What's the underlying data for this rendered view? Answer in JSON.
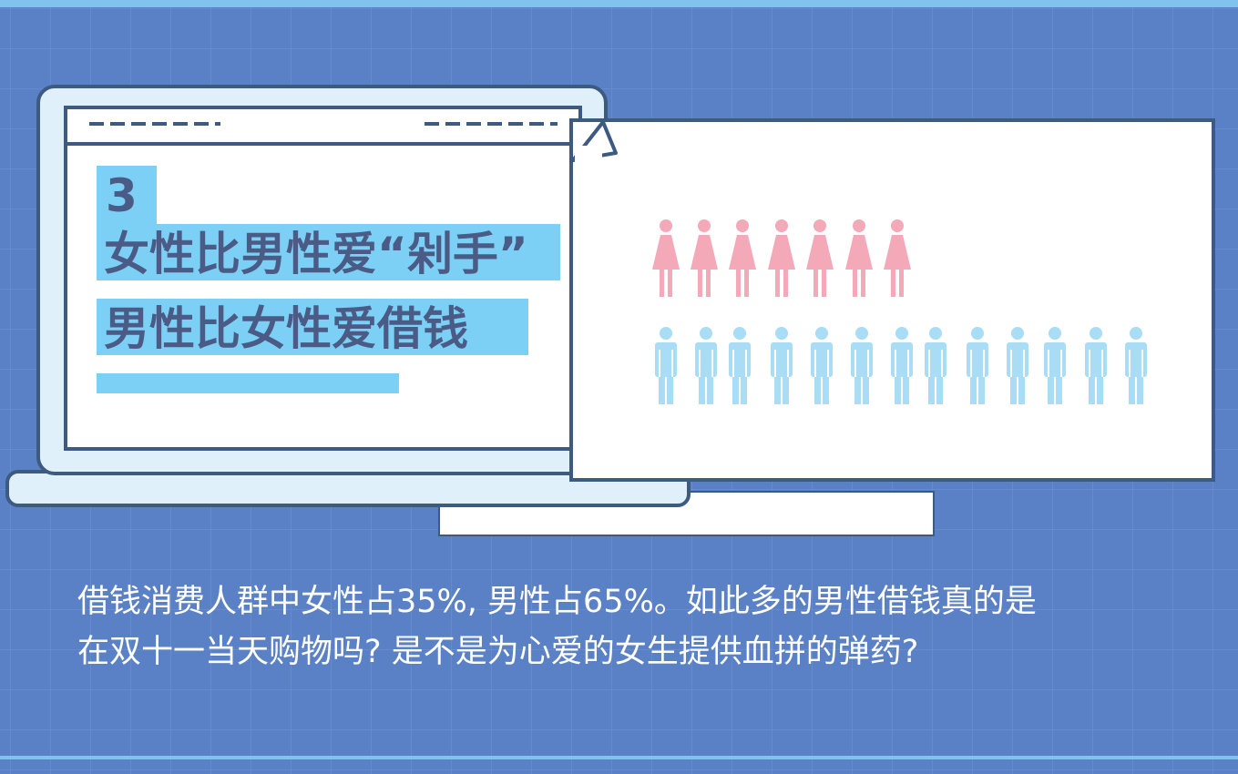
{
  "heading": {
    "number": "3",
    "lines": [
      "女性比男性爱“剁手”",
      "男性比女性爱借钱"
    ]
  },
  "paragraph": [
    "借钱消费人群中女性占35%, 男性占65%。如此多的男性借钱真的是",
    "在双十一当天购物吗? 是不是为心爱的女生提供血拼的弹药?"
  ]
}
